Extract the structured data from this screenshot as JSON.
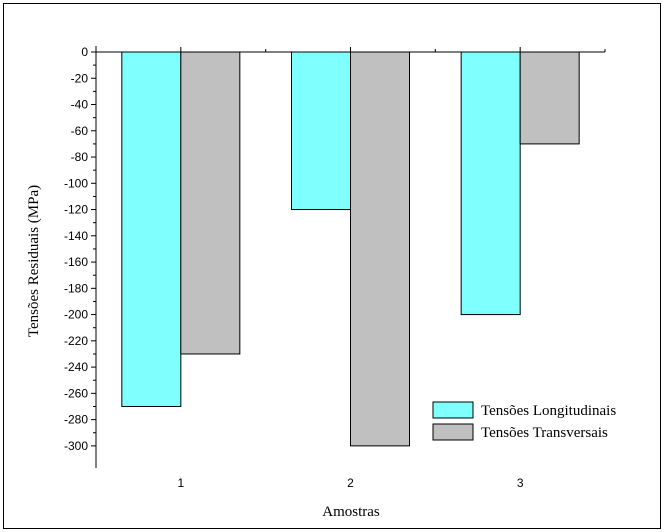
{
  "chart_data": {
    "type": "bar",
    "categories": [
      "1",
      "2",
      "3"
    ],
    "series": [
      {
        "name": "Tensões Longitudinais",
        "color": "#80ffff",
        "values": [
          -270,
          -120,
          -200
        ]
      },
      {
        "name": "Tensões Transversais",
        "color": "#c0c0c0",
        "values": [
          -230,
          -300,
          -70
        ]
      }
    ],
    "xlabel": "Amostras",
    "ylabel": "Tensões Residuais (MPa)",
    "ylim": [
      -310,
      0
    ],
    "yticks": [
      0,
      -20,
      -40,
      -60,
      -80,
      -100,
      -120,
      -140,
      -160,
      -180,
      -200,
      -220,
      -240,
      -260,
      -280,
      -300
    ],
    "grid": false,
    "legend_position": "bottom-right"
  }
}
